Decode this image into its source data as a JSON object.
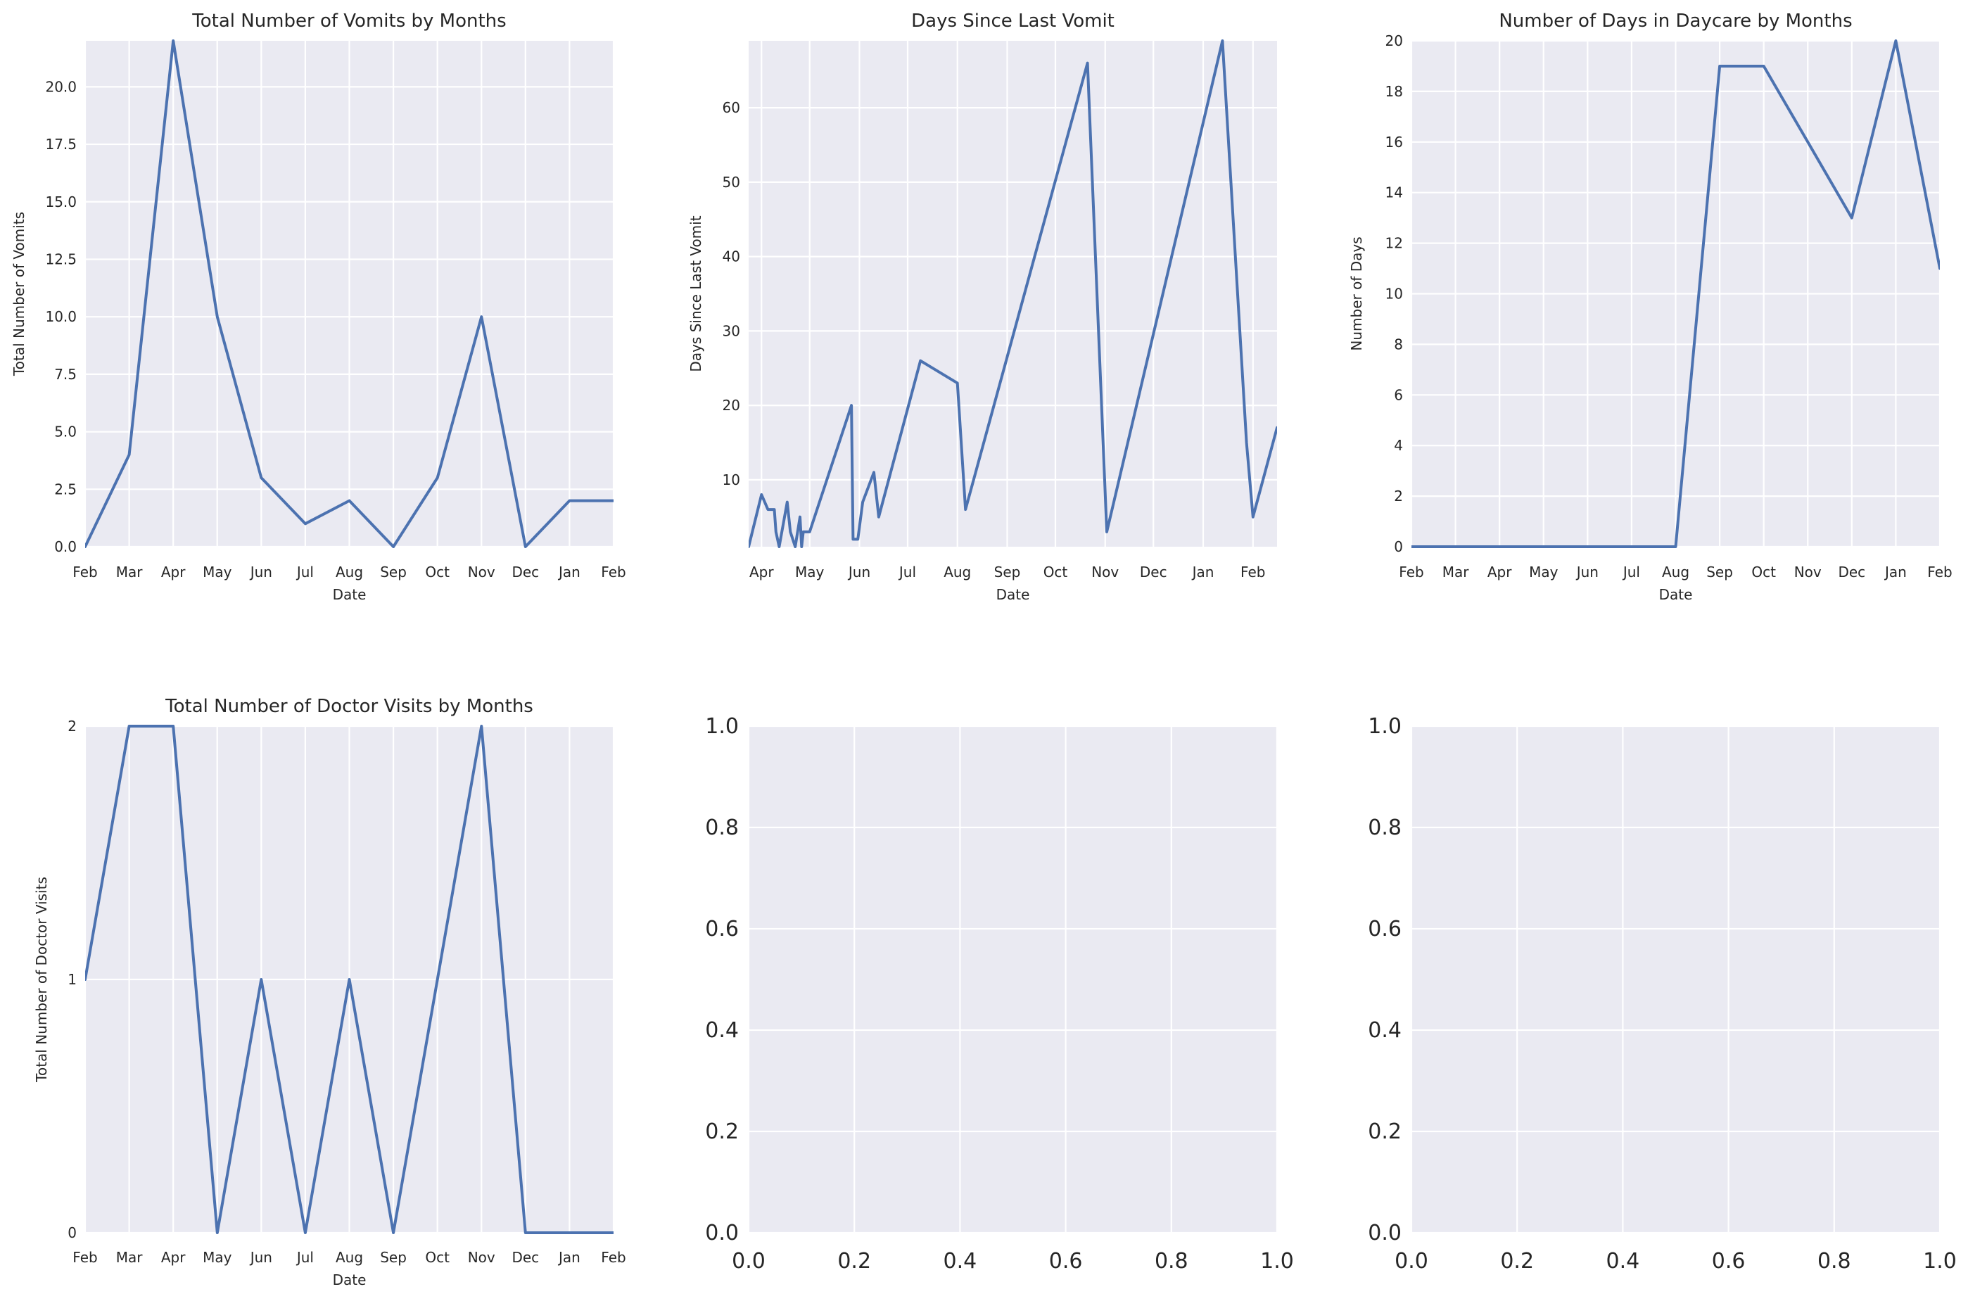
{
  "colors": {
    "series": "#4c72b0",
    "panel_background": "#eaeaf2",
    "grid": "#ffffff"
  },
  "chart_data": [
    {
      "type": "line",
      "title": "Total Number of Vomits by Months",
      "xlabel": "Date",
      "ylabel": "Total Number of Vomits",
      "x_ticks": [
        "Feb",
        "Mar",
        "Apr",
        "May",
        "Jun",
        "Jul",
        "Aug",
        "Sep",
        "Oct",
        "Nov",
        "Dec",
        "Jan",
        "Feb"
      ],
      "y_ticks": [
        "0.0",
        "2.5",
        "5.0",
        "7.5",
        "10.0",
        "12.5",
        "15.0",
        "17.5",
        "20.0"
      ],
      "ylim": [
        0,
        22
      ],
      "grid": true,
      "series": [
        {
          "x": [
            "Feb",
            "Mar",
            "Apr",
            "May",
            "Jun",
            "Jul",
            "Aug",
            "Sep",
            "Oct",
            "Nov",
            "Dec",
            "Jan",
            "Feb"
          ],
          "values": [
            0,
            4,
            22,
            10,
            3,
            1,
            2,
            0,
            3,
            10,
            0,
            2,
            2
          ]
        }
      ]
    },
    {
      "type": "line",
      "title": "Days Since Last Vomit",
      "xlabel": "Date",
      "ylabel": "Days Since Last Vomit",
      "x_ticks": [
        "Apr",
        "May",
        "Jun",
        "Jul",
        "Aug",
        "Sep",
        "Oct",
        "Nov",
        "Dec",
        "Jan",
        "Feb"
      ],
      "y_ticks": [
        "10",
        "20",
        "30",
        "40",
        "50",
        "60"
      ],
      "ylim": [
        1,
        69
      ],
      "grid": true,
      "series": [
        {
          "x": [
            "Mar 24",
            "Apr 1",
            "Apr 5",
            "Apr 9",
            "Apr 10",
            "Apr 12",
            "Apr 17",
            "Apr 19",
            "Apr 22",
            "Apr 25",
            "Apr 26",
            "Apr 27",
            "Apr 29",
            "May 1",
            "May 27",
            "May 28",
            "May 31",
            "Jun 3",
            "Jun 10",
            "Jun 13",
            "Jul 9",
            "Aug 1",
            "Aug 6",
            "Oct 21",
            "Nov 2",
            "Jan 13",
            "Jan 28",
            "Feb 1",
            "Feb 16"
          ],
          "values": [
            1,
            8,
            6,
            6,
            3,
            1,
            7,
            3,
            1,
            5,
            1,
            3,
            3,
            3,
            20,
            2,
            2,
            7,
            11,
            5,
            26,
            23,
            6,
            66,
            3,
            69,
            15,
            5,
            17
          ]
        }
      ]
    },
    {
      "type": "line",
      "title": "Number of Days in Daycare by Months",
      "xlabel": "Date",
      "ylabel": "Number of Days",
      "x_ticks": [
        "Feb",
        "Mar",
        "Apr",
        "May",
        "Jun",
        "Jul",
        "Aug",
        "Sep",
        "Oct",
        "Nov",
        "Dec",
        "Jan",
        "Feb"
      ],
      "y_ticks": [
        "0",
        "2",
        "4",
        "6",
        "8",
        "10",
        "12",
        "14",
        "16",
        "18",
        "20"
      ],
      "ylim": [
        0,
        20
      ],
      "grid": true,
      "series": [
        {
          "x": [
            "Feb",
            "Mar",
            "Apr",
            "May",
            "Jun",
            "Jul",
            "Aug",
            "Sep",
            "Oct",
            "Nov",
            "Dec",
            "Jan",
            "Feb"
          ],
          "values": [
            0,
            0,
            0,
            0,
            0,
            0,
            0,
            19,
            19,
            16,
            13,
            20,
            11
          ]
        }
      ]
    },
    {
      "type": "line",
      "title": "Total Number of Doctor Visits by Months",
      "xlabel": "Date",
      "ylabel": "Total Number of Doctor Visits",
      "x_ticks": [
        "Feb",
        "Mar",
        "Apr",
        "May",
        "Jun",
        "Jul",
        "Aug",
        "Sep",
        "Oct",
        "Nov",
        "Dec",
        "Jan",
        "Feb"
      ],
      "y_ticks": [
        "0",
        "1",
        "2"
      ],
      "ylim": [
        0,
        2
      ],
      "grid": true,
      "series": [
        {
          "x": [
            "Feb",
            "Mar",
            "Apr",
            "May",
            "Jun",
            "Jul",
            "Aug",
            "Sep",
            "Oct",
            "Nov",
            "Dec",
            "Jan",
            "Feb"
          ],
          "values": [
            1,
            2,
            2,
            0,
            1,
            0,
            1,
            0,
            1,
            2,
            0,
            0,
            0
          ]
        }
      ]
    },
    {
      "type": "line",
      "title": "",
      "xlabel": "",
      "ylabel": "",
      "x_ticks": [
        "0.0",
        "0.2",
        "0.4",
        "0.6",
        "0.8",
        "1.0"
      ],
      "y_ticks": [
        "0.0",
        "0.2",
        "0.4",
        "0.6",
        "0.8",
        "1.0"
      ],
      "xlim": [
        0,
        1
      ],
      "ylim": [
        0,
        1
      ],
      "grid": true,
      "series": []
    },
    {
      "type": "line",
      "title": "",
      "xlabel": "",
      "ylabel": "",
      "x_ticks": [
        "0.0",
        "0.2",
        "0.4",
        "0.6",
        "0.8",
        "1.0"
      ],
      "y_ticks": [
        "0.0",
        "0.2",
        "0.4",
        "0.6",
        "0.8",
        "1.0"
      ],
      "xlim": [
        0,
        1
      ],
      "ylim": [
        0,
        1
      ],
      "grid": true,
      "series": []
    }
  ]
}
